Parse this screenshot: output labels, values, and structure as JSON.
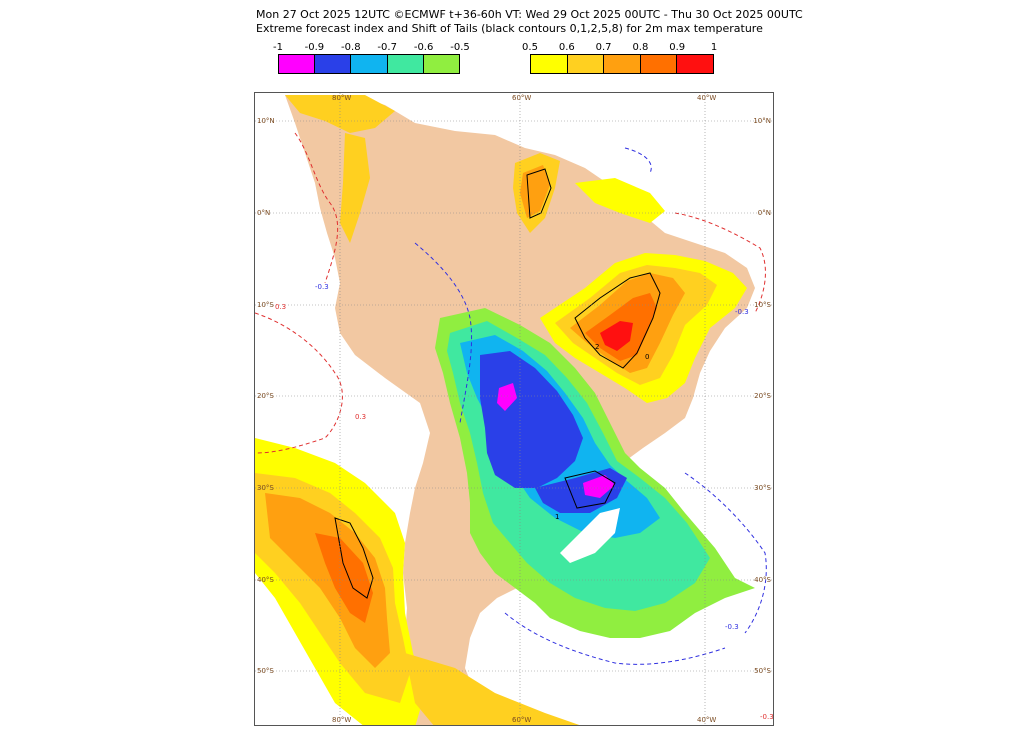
{
  "header": {
    "line1": "Mon 27 Oct 2025 12UTC ©ECMWF t+36-60h  VT: Wed 29 Oct 2025 00UTC - Thu 30 Oct 2025 00UTC",
    "line2": "Extreme forecast index and Shift of Tails (black contours 0,1,2,5,8) for 2m max temperature"
  },
  "legend": {
    "negative": {
      "ticks": [
        "-1",
        "-0.9",
        "-0.8",
        "-0.7",
        "-0.6",
        "-0.5"
      ],
      "colors": [
        "#ff00ff",
        "#2a40e8",
        "#10b4f0",
        "#40e8a0",
        "#90ee40"
      ]
    },
    "positive": {
      "ticks": [
        "0.5",
        "0.6",
        "0.7",
        "0.8",
        "0.9",
        "1"
      ],
      "colors": [
        "#ffff00",
        "#ffd020",
        "#ffa010",
        "#ff7000",
        "#ff1010"
      ]
    }
  },
  "map": {
    "lat_labels": [
      "10°N",
      "0°N",
      "10°S",
      "20°S",
      "30°S",
      "40°S",
      "50°S"
    ],
    "lon_labels": [
      "80°W",
      "60°W",
      "40°W"
    ],
    "contour_labels": [
      "-0.3",
      "0.3",
      "0",
      "1",
      "2"
    ],
    "colors": {
      "land": "#f2c8a2",
      "ocean": "#ffffff",
      "contour_positive": "#e03030",
      "contour_negative": "#3030e0",
      "graticule": "#888888"
    }
  }
}
